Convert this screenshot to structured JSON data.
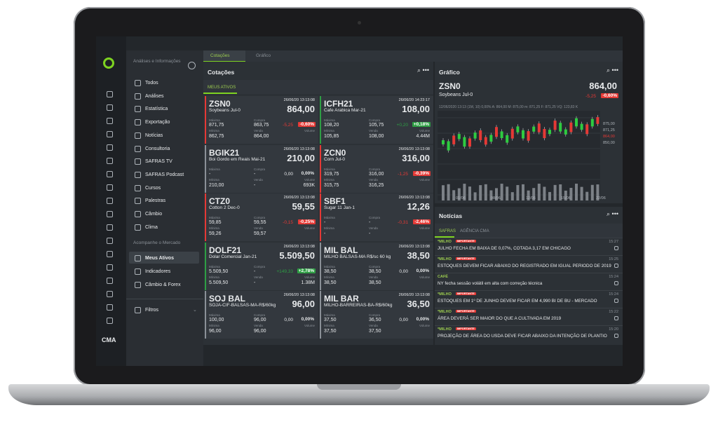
{
  "app": {
    "logo": "CMA"
  },
  "menu": {
    "header": "Análises e Informações",
    "items": [
      "Todos",
      "Análises",
      "Estatística",
      "Exportação",
      "Notícias",
      "Consultoria",
      "SAFRAS TV",
      "SAFRAS Podcast",
      "Cursos",
      "Palestras",
      "Câmbio",
      "Clima"
    ],
    "section": "Acompanhe o Mercado",
    "items2": [
      "Meus Ativos",
      "Indicadores",
      "Câmbio & Forex"
    ],
    "filter": "Filtros"
  },
  "tabs": [
    "Cotações",
    "Gráfico"
  ],
  "quotes": {
    "title": "Cotações",
    "subtab": "MEUS ATIVOS",
    "labels": {
      "max": "Máxima",
      "buy": "Compra",
      "min": "Mínima",
      "sell": "Venda",
      "volume": "Volume"
    },
    "cards": [
      {
        "symbol": "ZSN0",
        "time": "26/06/20 13:13:08",
        "price": "864,00",
        "name": "Soybeans Jul-0",
        "change": "-5,25",
        "pct": "-0,60%",
        "trend": "down",
        "max": "871,75",
        "buy": "863,75",
        "min": "862,75",
        "sell": "864,00"
      },
      {
        "symbol": "ICFH21",
        "time": "26/06/20 14:23:17",
        "price": "108,00",
        "name": "Cafe Arabica Mar-21",
        "change": "+0,20",
        "pct": "+0,18%",
        "trend": "up",
        "max": "108,20",
        "buy": "105,75",
        "min": "105,85",
        "sell": "108,00",
        "volume": "4.44M"
      },
      {
        "symbol": "BGIK21",
        "time": "26/06/20 13:13:08",
        "price": "210,00",
        "name": "Boi Gordo em Reais Mai-21",
        "change": "0,00",
        "pct": "0,00%",
        "trend": "flat",
        "max": "-",
        "buy": "-",
        "min": "210,00",
        "sell": "-",
        "volume": "693K"
      },
      {
        "symbol": "ZCN0",
        "time": "26/06/20 13:13:08",
        "price": "316,00",
        "name": "Corn Jul-0",
        "change": "-1,25",
        "pct": "-0,39%",
        "trend": "down",
        "max": "319,75",
        "buy": "316,00",
        "min": "315,75",
        "sell": "316,25"
      },
      {
        "symbol": "CTZ0",
        "time": "26/06/20 13:13:08",
        "price": "59,55",
        "name": "Cotton 2 Dec-0",
        "change": "-0,15",
        "pct": "-0,25%",
        "trend": "down",
        "max": "59,85",
        "buy": "59,55",
        "min": "59,26",
        "sell": "59,57"
      },
      {
        "symbol": "SBF1",
        "time": "26/06/20 13:13:08",
        "price": "12,26",
        "name": "Sugar 11 Jan-1",
        "change": "-0,31",
        "pct": "-2,46%",
        "trend": "down",
        "max": "-",
        "buy": "-",
        "min": "-",
        "sell": "-"
      },
      {
        "symbol": "DOLF21",
        "time": "26/06/20 13:13:08",
        "price": "5.509,50",
        "name": "Dolar Comercial Jan-21",
        "change": "+149,33",
        "pct": "+2,78%",
        "trend": "up",
        "max": "5.509,50",
        "buy": "-",
        "min": "5.509,50",
        "sell": "-",
        "volume": "1.38M"
      },
      {
        "symbol": "MIL BAL",
        "time": "26/06/20 13:13:08",
        "price": "38,50",
        "name": "MILHO BALSAS-MA R$/sc 60 kg",
        "change": "0,00",
        "pct": "0,00%",
        "trend": "flat",
        "max": "38,50",
        "buy": "38,50",
        "min": "38,50",
        "sell": "38,50"
      },
      {
        "symbol": "SOJ BAL",
        "time": "26/06/20 13:13:08",
        "price": "96,00",
        "name": "SOJA-CIF-BALSAS-MA-R$/60kg",
        "change": "0,00",
        "pct": "0,00%",
        "trend": "flat",
        "max": "100,00",
        "buy": "96,00",
        "min": "96,00",
        "sell": "96,00"
      },
      {
        "symbol": "MIL BAR",
        "time": "26/06/20 13:13:08",
        "price": "36,50",
        "name": "MILHO-BARREIRAS-BA-R$/60kg",
        "change": "0,00",
        "pct": "0,00%",
        "trend": "flat",
        "max": "37,50",
        "buy": "36,50",
        "min": "37,50",
        "sell": "37,50"
      }
    ]
  },
  "chart": {
    "title": "Gráfico",
    "symbol": "ZSN0",
    "name": "Soybeans Jul-0",
    "price": "864,00",
    "change": "-5,25",
    "pct": "-0,60%",
    "info": "12/06/2020 13:13 (1M, 10)  0,00%  A: 864,00  M: 875,00  m: 871,25  F: 871,25  VQ: 123,83 K",
    "yaxis": [
      "875,00",
      "871,25",
      "864,00",
      "850,00"
    ],
    "xaxis": [
      "01/06",
      "08/06",
      "12/06",
      "15/06",
      "22/06"
    ]
  },
  "news": {
    "title": "Notícias",
    "tabs": [
      "SAFRAS",
      "AGÊNCIA CMA"
    ],
    "badge": "IMPORTANTE",
    "items": [
      {
        "tag": "*MILHO",
        "important": true,
        "time": "15:27",
        "headline": "JULHO FECHA EM BAIXA DE 0,07%, COTADA 3,17 EM CHICAGO"
      },
      {
        "tag": "*MILHO",
        "important": true,
        "time": "15:25",
        "headline": "ESTOQUES DEVEM FICAR ABAIXO DO REGISTRADO EM IGUAL PERIODO DE 2019"
      },
      {
        "tag": "CAFÉ",
        "important": false,
        "time": "15:24",
        "headline": "NY fecha sessão volátil em alta com correção técnica"
      },
      {
        "tag": "*MILHO",
        "important": true,
        "time": "15:24",
        "headline": "ESTOQUES EM 1º DE JUNHO DEVEM FICAR EM 4,990 BI DE BU - MERCADO"
      },
      {
        "tag": "*MILHO",
        "important": true,
        "time": "15:22",
        "headline": "ÁREA DEVERÁ SER MAIOR DO QUE A CULTIVADA EM 2019"
      },
      {
        "tag": "*MILHO",
        "important": true,
        "time": "15:20",
        "headline": "PROJEÇÃO DE ÁREA DO USDA DEVE FICAR ABAIXO DA INTENÇÃO DE PLANTIO"
      }
    ]
  }
}
